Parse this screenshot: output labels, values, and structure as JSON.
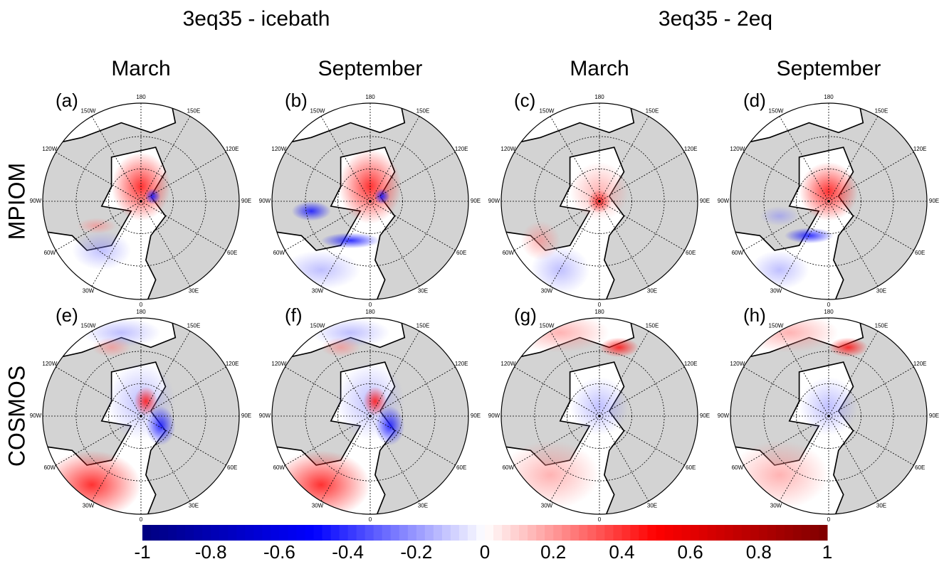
{
  "groups": [
    "3eq35 - icebath",
    "3eq35 - 2eq"
  ],
  "columns": [
    "March",
    "September",
    "March",
    "September"
  ],
  "rows": [
    "MPIOM",
    "COSMOS"
  ],
  "panels": [
    "(a)",
    "(b)",
    "(c)",
    "(d)",
    "(e)",
    "(f)",
    "(g)",
    "(h)"
  ],
  "longitude_labels": [
    "180",
    "150E",
    "120E",
    "90E",
    "60E",
    "30E",
    "0",
    "30W",
    "60W",
    "90W",
    "120W",
    "150W"
  ],
  "colorbar": {
    "range": [
      -1,
      1
    ],
    "ticks": [
      -1,
      -0.8,
      -0.6,
      -0.4,
      -0.2,
      0,
      0.2,
      0.4,
      0.6,
      0.8,
      1
    ],
    "colors": [
      "#00007f",
      "#0000ff",
      "#ffffff",
      "#ff0000",
      "#7f0000"
    ]
  }
}
